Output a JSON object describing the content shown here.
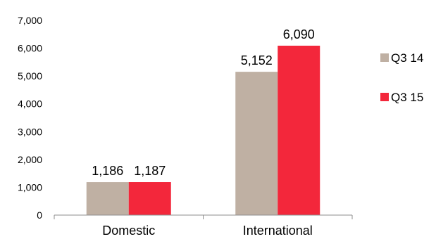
{
  "chart_data": {
    "type": "bar",
    "categories": [
      "Domestic",
      "International"
    ],
    "series": [
      {
        "name": "Q3 14",
        "values": [
          1186,
          5152
        ],
        "labels": [
          "1,186",
          "5,152"
        ],
        "color": "#bfb0a3"
      },
      {
        "name": "Q3 15",
        "values": [
          1187,
          6090
        ],
        "labels": [
          "1,187",
          "6,090"
        ],
        "color": "#f3273b"
      }
    ],
    "ylim": [
      0,
      7000
    ],
    "yticks": [
      0,
      1000,
      2000,
      3000,
      4000,
      5000,
      6000,
      7000
    ],
    "ytick_labels": [
      "0",
      "1,000",
      "2,000",
      "3,000",
      "4,000",
      "5,000",
      "6,000",
      "7,000"
    ],
    "grid": false,
    "legend_position": "right",
    "title": "",
    "xlabel": "",
    "ylabel": ""
  }
}
